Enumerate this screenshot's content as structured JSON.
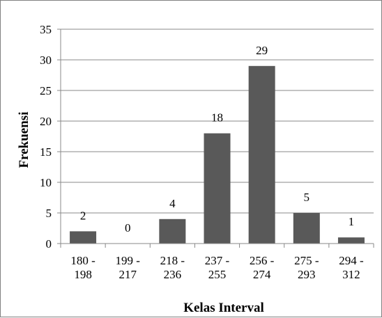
{
  "chart_data": {
    "type": "bar",
    "categories": [
      [
        "180 -",
        "198"
      ],
      [
        "199 -",
        "217"
      ],
      [
        "218 -",
        "236"
      ],
      [
        "237 -",
        "255"
      ],
      [
        "256 -",
        "274"
      ],
      [
        "275 -",
        "293"
      ],
      [
        "294 -",
        "312"
      ]
    ],
    "values": [
      2,
      0,
      4,
      18,
      29,
      5,
      1
    ],
    "title": "",
    "xlabel": "Kelas Interval",
    "ylabel": "Frekuensi",
    "ylim": [
      0,
      35
    ],
    "yticks": [
      0,
      5,
      10,
      15,
      20,
      25,
      30,
      35
    ],
    "grid": true,
    "bar_color": "#595959",
    "grid_color": "#888888"
  }
}
